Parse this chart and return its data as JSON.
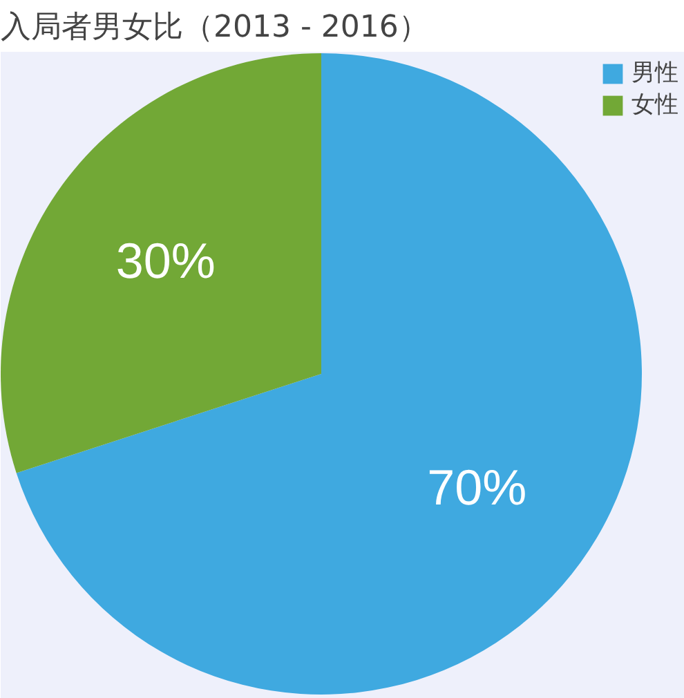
{
  "chart_data": {
    "type": "pie",
    "title": "入局者男女比（2013 - 2016）",
    "categories": [
      "男性",
      "女性"
    ],
    "values": [
      70,
      30
    ],
    "colors": [
      "#3fa9e0",
      "#72a836"
    ],
    "value_labels": [
      "70%",
      "30%"
    ],
    "legend": "top right"
  }
}
